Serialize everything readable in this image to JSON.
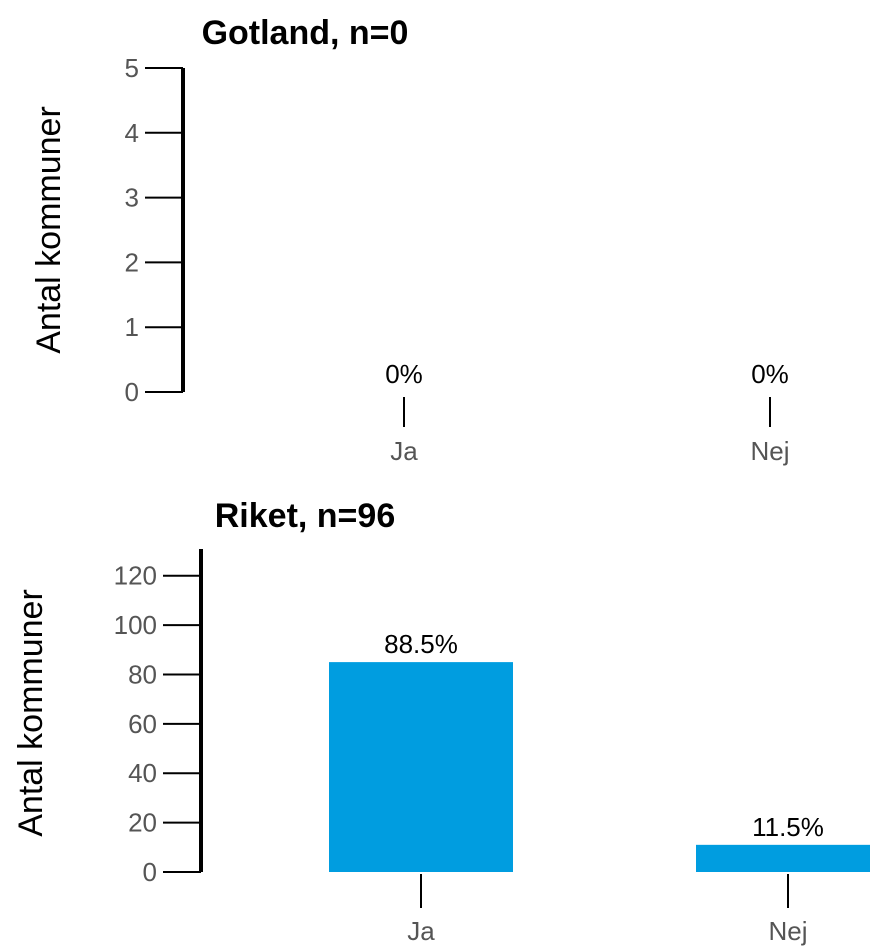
{
  "chart_data": [
    {
      "type": "bar",
      "title": "Gotland, n=0",
      "ylabel": "Antal kommuner",
      "xlabel": "",
      "categories": [
        "Ja",
        "Nej"
      ],
      "values": [
        0,
        0
      ],
      "data_labels": [
        "0%",
        "0%"
      ],
      "ylim": [
        0,
        5
      ],
      "yticks": [
        "0",
        "1",
        "2",
        "3",
        "4",
        "5"
      ],
      "bar_color": "#009de0",
      "grid": false
    },
    {
      "type": "bar",
      "title": "Riket, n=96",
      "ylabel": "Antal kommuner",
      "xlabel": "",
      "categories": [
        "Ja",
        "Nej"
      ],
      "values": [
        85,
        11
      ],
      "data_labels": [
        "88.5%",
        "11.5%"
      ],
      "ylim": [
        0,
        130
      ],
      "yticks": [
        "0",
        "20",
        "40",
        "60",
        "80",
        "100",
        "120"
      ],
      "bar_color": "#009de0",
      "grid": false
    }
  ]
}
